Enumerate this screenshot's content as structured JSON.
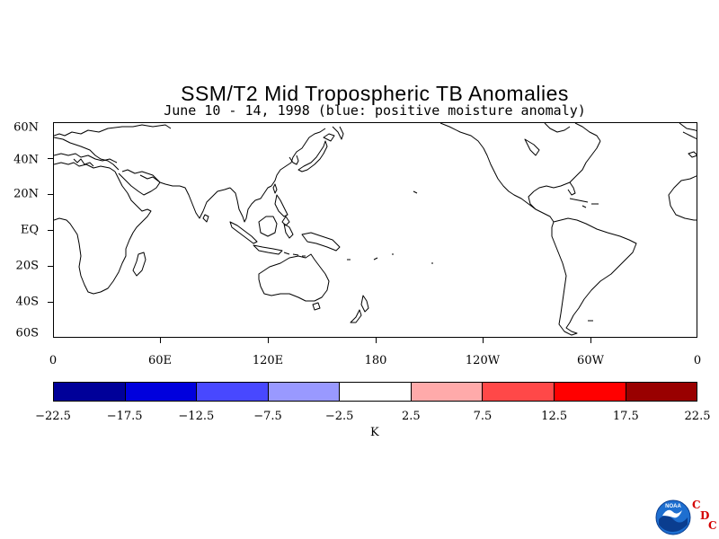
{
  "title": "SSM/T2 Mid Tropospheric TB Anomalies",
  "subtitle": "June 10 - 14, 1998 (blue: positive moisture anomaly)",
  "map": {
    "lat_labels": [
      "60N",
      "40N",
      "20N",
      "EQ",
      "20S",
      "40S",
      "60S"
    ],
    "lat_values": [
      60,
      40,
      20,
      0,
      -20,
      -40,
      -60
    ],
    "lon_labels": [
      "0",
      "60E",
      "120E",
      "180",
      "120W",
      "60W",
      "0"
    ],
    "lon_values": [
      0,
      60,
      120,
      180,
      240,
      300,
      360
    ],
    "lat_range": [
      -60,
      60
    ],
    "lon_range": [
      0,
      360
    ],
    "coastline_color": "#000000"
  },
  "colorbar": {
    "colors": [
      "#000099",
      "#0000dd",
      "#4848ff",
      "#9999ff",
      "#ffffff",
      "#ffaaaa",
      "#ff4848",
      "#ff0000",
      "#990000"
    ],
    "tick_labels": [
      "-22.5",
      "-17.5",
      "-12.5",
      "-7.5",
      "-2.5",
      "2.5",
      "7.5",
      "12.5",
      "17.5",
      "22.5"
    ],
    "units": "K"
  },
  "branding": {
    "logo_text": "NOAA",
    "cdc_letters": [
      "C",
      "D",
      "C"
    ],
    "cdc_color": "#d40000"
  }
}
